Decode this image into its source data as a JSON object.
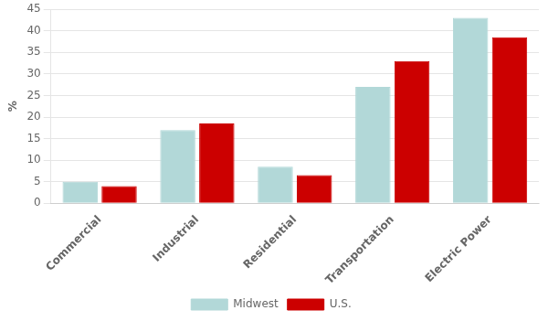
{
  "chart_data": {
    "type": "bar",
    "categories": [
      "Commercial",
      "Industrial",
      "Residential",
      "Transportation",
      "Electric Power"
    ],
    "series": [
      {
        "name": "Midwest",
        "color": "#b2d8d8",
        "values": [
          5,
          17,
          8.5,
          27,
          43
        ]
      },
      {
        "name": "U.S.",
        "color": "#cc0000",
        "values": [
          4,
          18.5,
          6.5,
          33,
          38.5
        ]
      }
    ],
    "ylabel": "%",
    "ylim": [
      0,
      45
    ],
    "yticks": [
      0,
      5,
      10,
      15,
      20,
      25,
      30,
      35,
      40,
      45
    ],
    "grid": true,
    "legend": "bottom"
  }
}
